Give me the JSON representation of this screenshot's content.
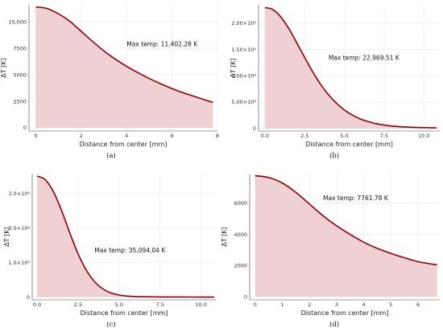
{
  "colors": {
    "line": "#8b0000",
    "fill": "#f0d1d3",
    "grid": "#e6e6e6"
  },
  "chart_data": [
    {
      "type": "area",
      "caption": "(a)",
      "xlabel": "Distance from center [mm]",
      "ylabel": "ΔT [K]",
      "annotation": "Max temp: 11,402.28 K",
      "annotation_at": [
        4.0,
        7700
      ],
      "xlim": [
        -0.3,
        8.0
      ],
      "ylim": [
        -300,
        11600
      ],
      "xticks": [
        0,
        2,
        4,
        6,
        8
      ],
      "xtick_labels": [
        "0",
        "2",
        "4",
        "6",
        "8"
      ],
      "yticks": [
        0,
        2500,
        5000,
        7500,
        10000
      ],
      "ytick_labels": [
        "0",
        "2500",
        "5000",
        "7500",
        "10,000"
      ],
      "x": [
        0,
        0.5,
        1,
        1.5,
        2,
        2.5,
        3,
        3.5,
        4,
        4.5,
        5,
        5.5,
        6,
        6.5,
        7,
        7.5,
        7.8
      ],
      "y": [
        11402,
        11250,
        10750,
        10050,
        9100,
        8150,
        7250,
        6480,
        5800,
        5200,
        4650,
        4150,
        3700,
        3300,
        2950,
        2600,
        2400
      ]
    },
    {
      "type": "area",
      "caption": "(b)",
      "xlabel": "Distance from center [mm]",
      "ylabel": "ΔT [K]",
      "annotation": "Max temp: 22,969.51 K",
      "annotation_at": [
        4.0,
        13000
      ],
      "xlim": [
        -0.4,
        11.0
      ],
      "ylim": [
        -500,
        23500
      ],
      "xticks": [
        0,
        2.5,
        5.0,
        7.5,
        10.0
      ],
      "xtick_labels": [
        "0.0",
        "2.5",
        "5.0",
        "7.5",
        "10.0"
      ],
      "yticks": [
        0,
        5000,
        10000,
        15000,
        20000
      ],
      "ytick_labels": [
        "0",
        "5.00×10³",
        "1.00×10⁴",
        "1.50×10⁴",
        "2.00×10⁴"
      ],
      "x": [
        0,
        0.5,
        1,
        1.5,
        2,
        2.5,
        3,
        3.5,
        4,
        4.5,
        5,
        5.5,
        6,
        6.5,
        7,
        7.5,
        8,
        9,
        10,
        10.8
      ],
      "y": [
        22970,
        22600,
        21200,
        19000,
        16300,
        13500,
        10800,
        8400,
        6400,
        4800,
        3500,
        2550,
        1800,
        1300,
        900,
        650,
        450,
        250,
        150,
        100
      ]
    },
    {
      "type": "area",
      "caption": "(c)",
      "xlabel": "Distance from center [mm]",
      "ylabel": "ΔT [K]",
      "annotation": "Max temp: 35,094.04 K",
      "annotation_at": [
        3.5,
        13000
      ],
      "xlim": [
        -0.3,
        10.9
      ],
      "ylim": [
        -800,
        35800
      ],
      "xticks": [
        0,
        2.5,
        5.0,
        7.5,
        10.0
      ],
      "xtick_labels": [
        "0.0",
        "2.5",
        "5.0",
        "7.5",
        "10.0"
      ],
      "yticks": [
        0,
        10000,
        20000,
        30000
      ],
      "ytick_labels": [
        "0",
        "1.0×10⁴",
        "2.0×10⁴",
        "3.0×10⁴"
      ],
      "x": [
        0,
        0.5,
        1,
        1.5,
        2,
        2.5,
        3,
        3.5,
        4,
        4.5,
        5,
        5.5,
        6,
        7,
        8,
        9,
        10,
        10.8
      ],
      "y": [
        35094,
        34000,
        30500,
        25000,
        18500,
        12500,
        7800,
        4500,
        2400,
        1200,
        600,
        300,
        150,
        60,
        30,
        20,
        10,
        5
      ]
    },
    {
      "type": "area",
      "caption": "(d)",
      "xlabel": "Distance from center [mm]",
      "ylabel": "ΔT [K]",
      "annotation": "Max temp: 7761.78 K",
      "annotation_at": [
        2.5,
        6200
      ],
      "xlim": [
        -0.2,
        6.8
      ],
      "ylim": [
        -200,
        7900
      ],
      "xticks": [
        0,
        1,
        2,
        3,
        4,
        5,
        6
      ],
      "xtick_labels": [
        "0",
        "1",
        "2",
        "3",
        "4",
        "5",
        "6"
      ],
      "yticks": [
        0,
        2000,
        4000,
        6000
      ],
      "ytick_labels": [
        "0",
        "2000",
        "4000",
        "6000"
      ],
      "x": [
        0,
        0.5,
        1,
        1.5,
        2,
        2.5,
        3,
        3.5,
        4,
        4.5,
        5,
        5.5,
        6,
        6.5,
        6.7
      ],
      "y": [
        7762,
        7650,
        7300,
        6700,
        5950,
        5200,
        4550,
        4000,
        3500,
        3100,
        2780,
        2500,
        2250,
        2100,
        2050
      ]
    }
  ]
}
